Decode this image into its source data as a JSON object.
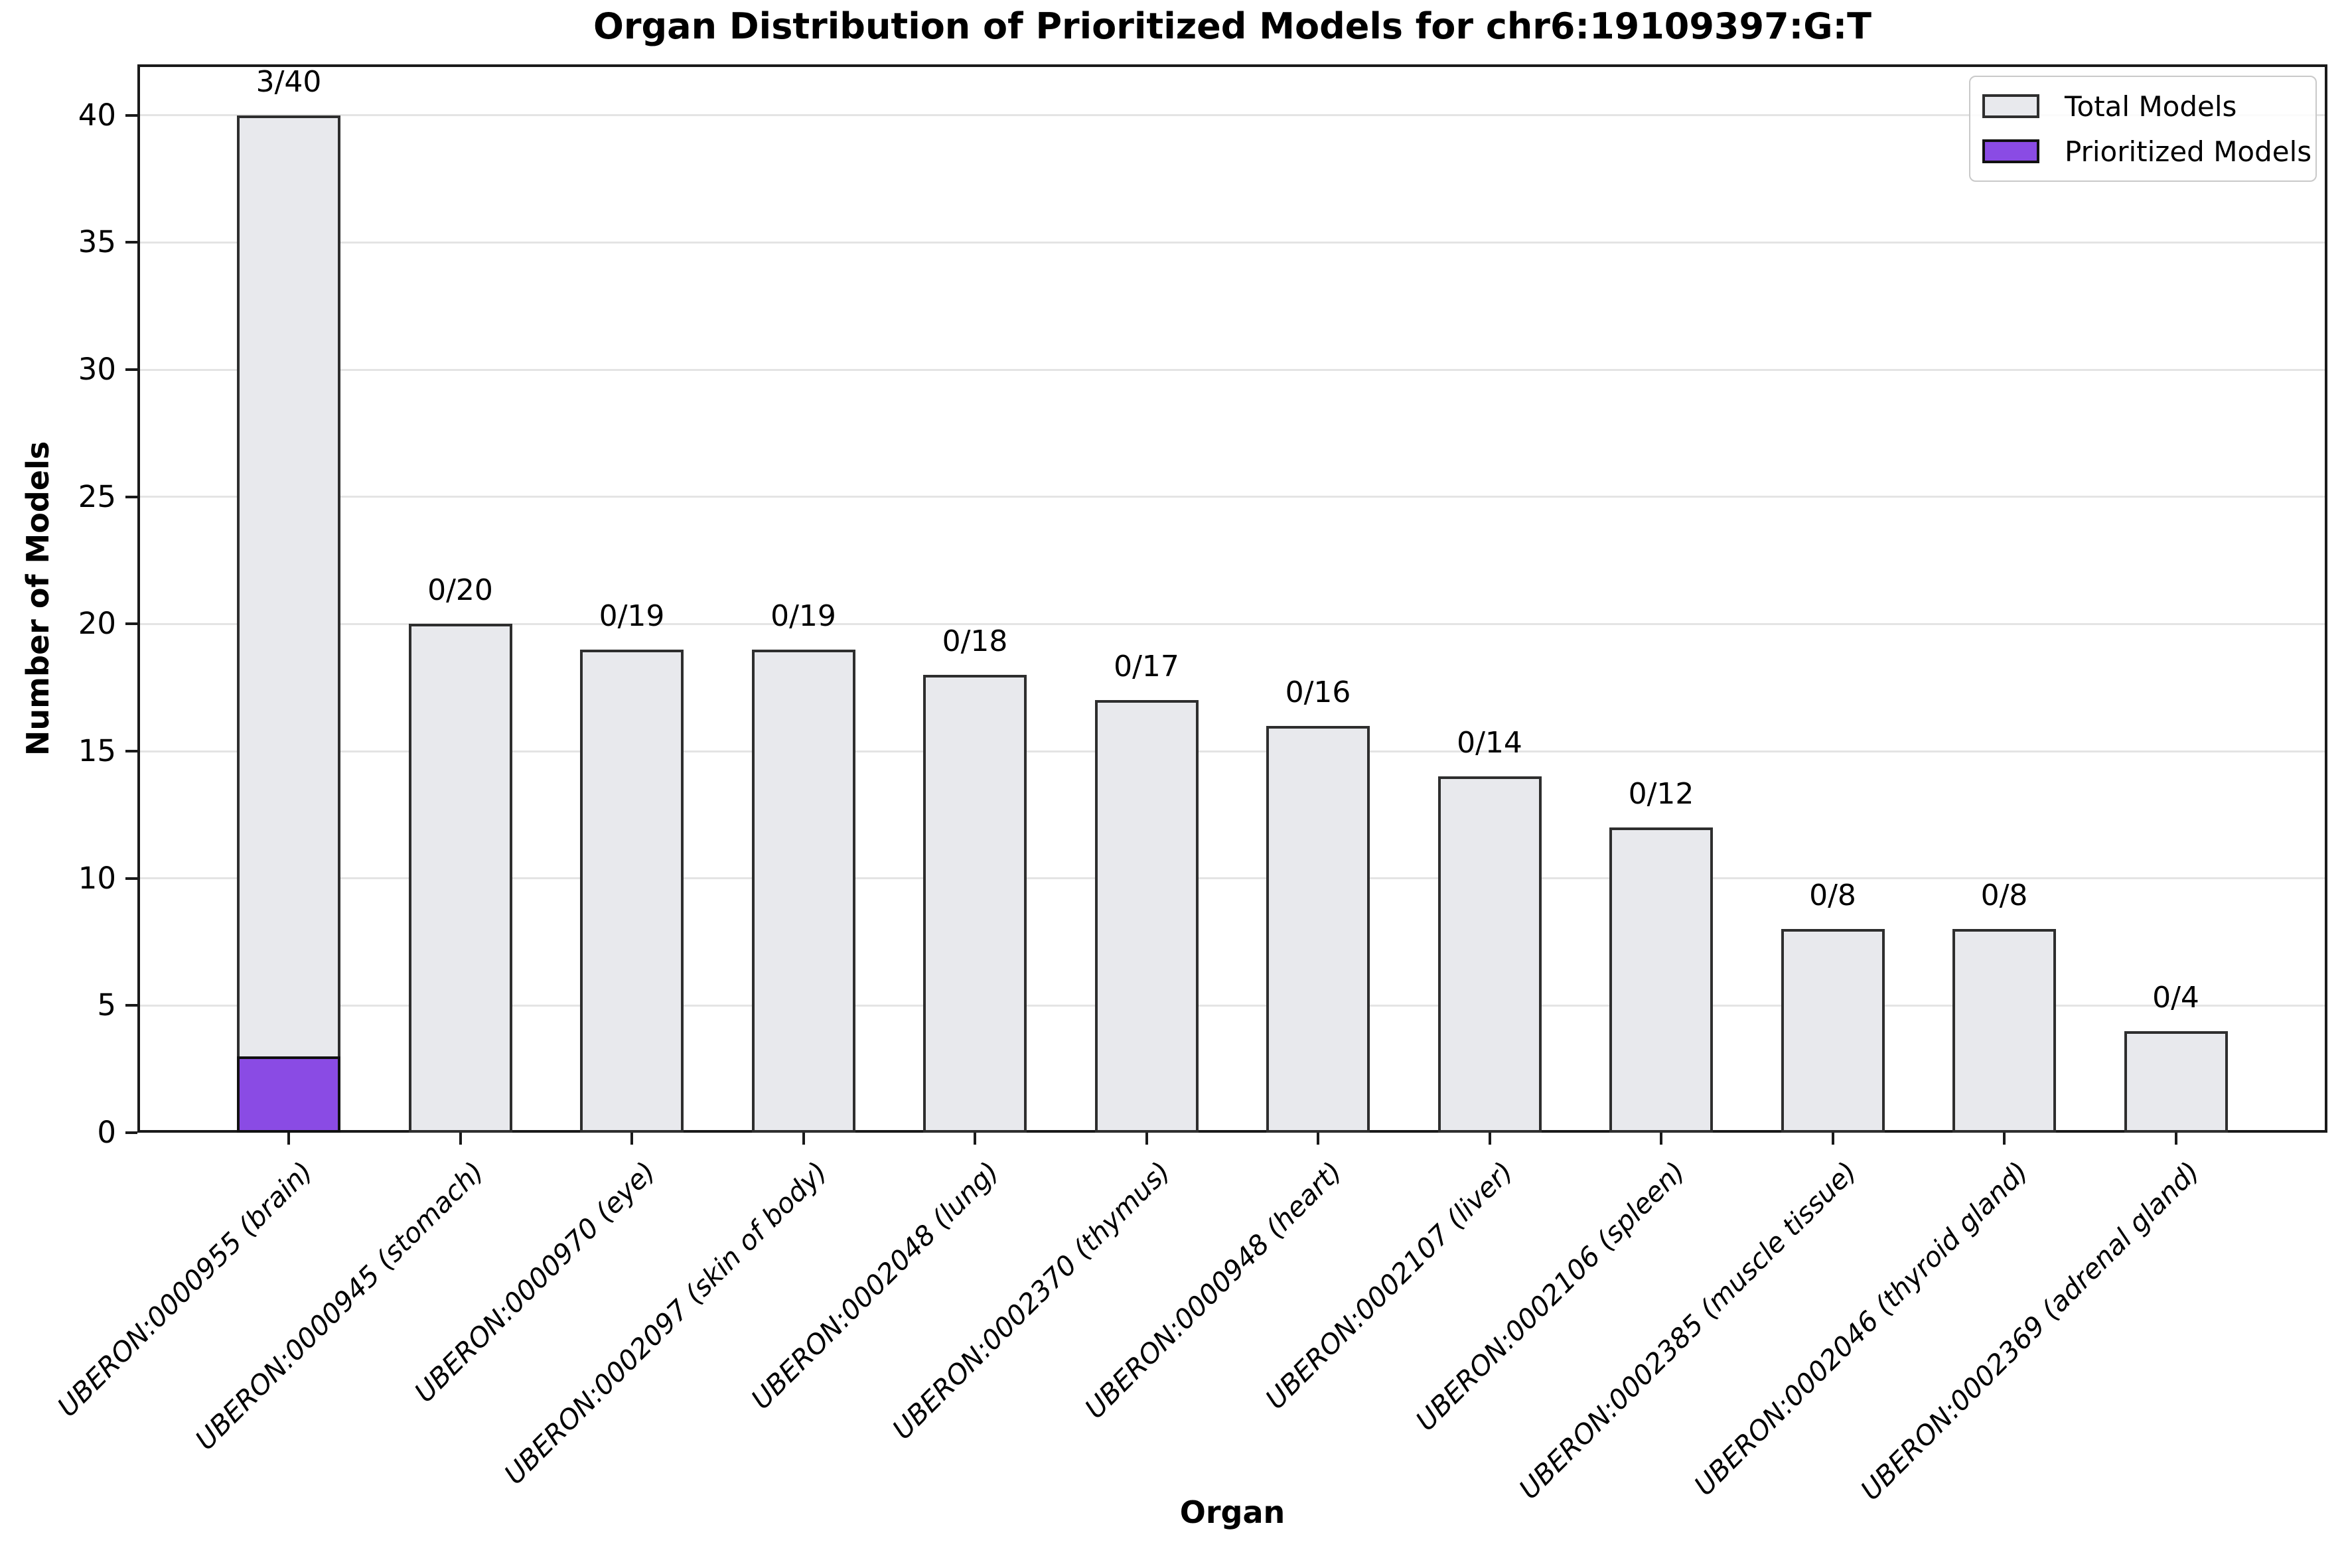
{
  "chart_data": {
    "type": "bar",
    "title": "Organ Distribution of Prioritized Models for chr6:19109397:G:T",
    "xlabel": "Organ",
    "ylabel": "Number of Models",
    "ylim": [
      0,
      42
    ],
    "yticks": [
      0,
      5,
      10,
      15,
      20,
      25,
      30,
      35,
      40
    ],
    "grid": "horizontal",
    "gridline_color": "#e4e4e4",
    "legend_position": "upper-right",
    "categories": [
      "UBERON:0000955 (brain)",
      "UBERON:0000945 (stomach)",
      "UBERON:0000970 (eye)",
      "UBERON:0002097 (skin of body)",
      "UBERON:0002048 (lung)",
      "UBERON:0002370 (thymus)",
      "UBERON:0000948 (heart)",
      "UBERON:0002107 (liver)",
      "UBERON:0002106 (spleen)",
      "UBERON:0002385 (muscle tissue)",
      "UBERON:0002046 (thyroid gland)",
      "UBERON:0002369 (adrenal gland)"
    ],
    "series": [
      {
        "name": "Total Models",
        "values": [
          40,
          20,
          19,
          19,
          18,
          17,
          16,
          14,
          12,
          8,
          8,
          4
        ],
        "fill": "#e8e9ed",
        "edge": "#2e2e2e"
      },
      {
        "name": "Prioritized Models",
        "values": [
          3,
          0,
          0,
          0,
          0,
          0,
          0,
          0,
          0,
          0,
          0,
          0
        ],
        "fill": "#8a4be4",
        "edge": "#111111"
      }
    ],
    "bar_labels": [
      "3/40",
      "0/20",
      "0/19",
      "0/19",
      "0/18",
      "0/17",
      "0/16",
      "0/14",
      "0/12",
      "0/8",
      "0/8",
      "0/4"
    ],
    "legend": {
      "entries": [
        {
          "label": "Total Models",
          "fill": "#e8e9ed",
          "edge": "#2e2e2e"
        },
        {
          "label": "Prioritized Models",
          "fill": "#8a4be4",
          "edge": "#111111"
        }
      ]
    }
  }
}
